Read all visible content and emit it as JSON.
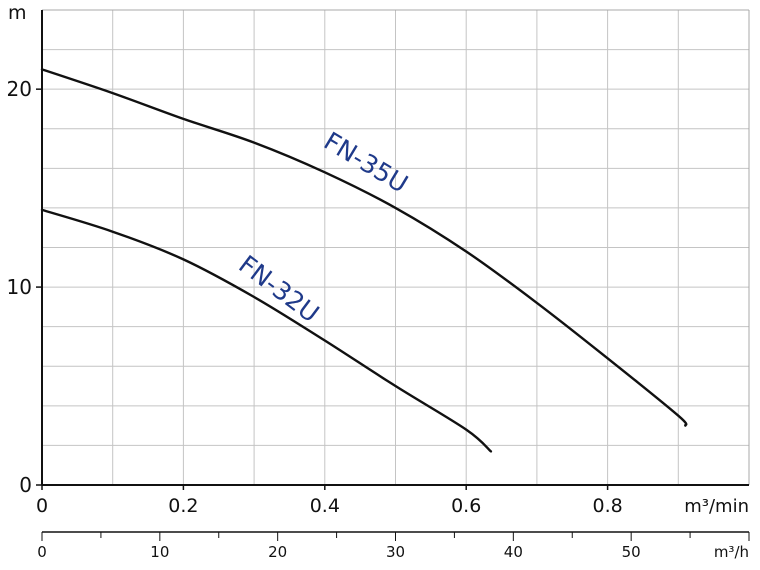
{
  "chart_data": {
    "type": "line",
    "ylabel": "m",
    "xlabel": "m³/min",
    "xlabel2": "m³/h",
    "xlim": [
      0,
      1.0
    ],
    "ylim": [
      0,
      24
    ],
    "x2lim": [
      0,
      60
    ],
    "xticks": [
      0,
      0.2,
      0.4,
      0.6,
      0.8
    ],
    "xtick_labels": [
      "0",
      "0.2",
      "0.4",
      "0.6",
      "0.8"
    ],
    "x2ticks": [
      0,
      10,
      20,
      30,
      40,
      50
    ],
    "x2tick_labels": [
      "0",
      "10",
      "20",
      "30",
      "40",
      "50"
    ],
    "yticks": [
      0,
      10,
      20
    ],
    "ytick_labels": [
      "0",
      "10",
      "20"
    ],
    "grid": true,
    "label_color": "#1f3a8a",
    "series": [
      {
        "name": "FN-35U",
        "x": [
          0,
          0.1,
          0.2,
          0.3,
          0.4,
          0.5,
          0.6,
          0.7,
          0.8,
          0.9,
          0.91
        ],
        "y": [
          21,
          19.8,
          18.5,
          17.3,
          15.8,
          14.0,
          11.8,
          9.2,
          6.4,
          3.5,
          3.0
        ]
      },
      {
        "name": "FN-32U",
        "x": [
          0,
          0.1,
          0.2,
          0.3,
          0.4,
          0.5,
          0.6,
          0.635
        ],
        "y": [
          13.9,
          12.8,
          11.4,
          9.5,
          7.3,
          5.0,
          2.8,
          1.7
        ]
      }
    ]
  }
}
